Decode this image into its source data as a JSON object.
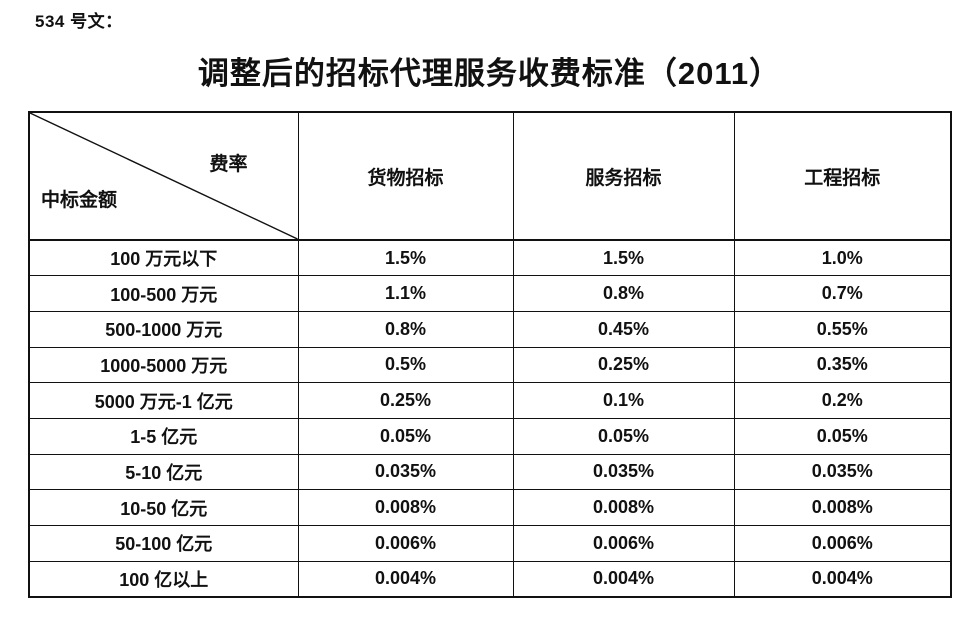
{
  "page": {
    "doc_label": "534 号文：",
    "title": "调整后的招标代理服务收费标准（2011）"
  },
  "table": {
    "corner": {
      "top_right": "费率",
      "bottom_left": "中标金额"
    },
    "columns": [
      "货物招标",
      "服务招标",
      "工程招标"
    ],
    "rows": [
      {
        "label": "100 万元以下",
        "values": [
          "1.5%",
          "1.5%",
          "1.0%"
        ]
      },
      {
        "label": "100-500 万元",
        "values": [
          "1.1%",
          "0.8%",
          "0.7%"
        ]
      },
      {
        "label": "500-1000 万元",
        "values": [
          "0.8%",
          "0.45%",
          "0.55%"
        ]
      },
      {
        "label": "1000-5000 万元",
        "values": [
          "0.5%",
          "0.25%",
          "0.35%"
        ]
      },
      {
        "label": "5000 万元-1 亿元",
        "values": [
          "0.25%",
          "0.1%",
          "0.2%"
        ]
      },
      {
        "label": "1-5 亿元",
        "values": [
          "0.05%",
          "0.05%",
          "0.05%"
        ]
      },
      {
        "label": "5-10 亿元",
        "values": [
          "0.035%",
          "0.035%",
          "0.035%"
        ]
      },
      {
        "label": "10-50 亿元",
        "values": [
          "0.008%",
          "0.008%",
          "0.008%"
        ]
      },
      {
        "label": "50-100 亿元",
        "values": [
          "0.006%",
          "0.006%",
          "0.006%"
        ]
      },
      {
        "label": "100 亿以上",
        "values": [
          "0.004%",
          "0.004%",
          "0.004%"
        ]
      }
    ],
    "colors": {
      "border": "#111111",
      "text": "#111111",
      "background": "#ffffff"
    }
  }
}
